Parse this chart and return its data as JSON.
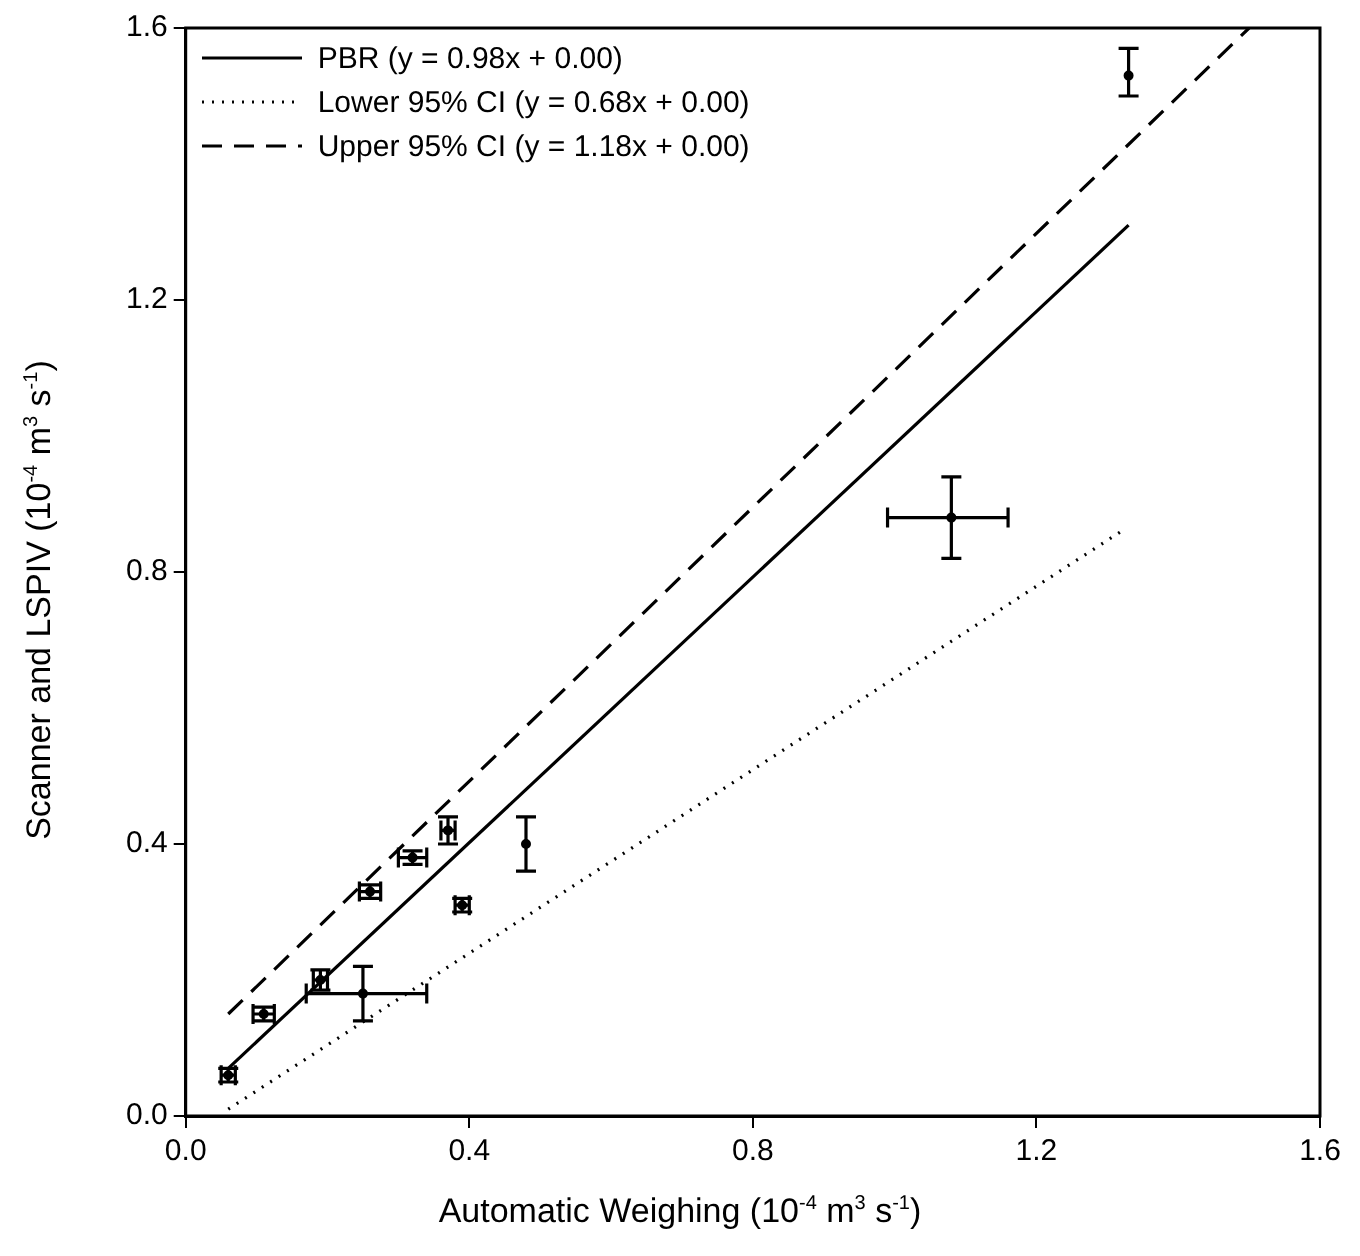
{
  "chart_data": {
    "type": "scatter",
    "xlabel": "Automatic Weighing (10$^{-4}$ m$^{3}$ s$^{-1}$)",
    "ylabel": "Scanner and LSPIV (10$^{-4}$ m$^{3}$ s$^{-1}$)",
    "xlim": [
      0,
      1.6
    ],
    "ylim": [
      0,
      1.6
    ],
    "xticks": [
      {
        "value": 0,
        "label": "0.0"
      },
      0.4,
      0.8,
      1.2,
      1.6
    ],
    "yticks": [
      {
        "value": 0,
        "label": "0.0"
      },
      0.4,
      0.8,
      1.2,
      1.6
    ],
    "grid": false,
    "legend": "top left",
    "series": [
      {
        "color": "#000000",
        "x": [
          0.06,
          0.11,
          0.19,
          0.25,
          0.26,
          0.32,
          0.37,
          0.39,
          0.48,
          1.08,
          1.33
        ],
        "values": [
          0.06,
          0.15,
          0.2,
          0.18,
          0.33,
          0.38,
          0.42,
          0.31,
          0.4,
          0.88,
          1.53
        ],
        "errors": [
          0.01,
          0.01,
          0.015,
          [
            0.14,
            0.22
          ],
          0.01,
          0.01,
          0.02,
          0.01,
          [
            0.36,
            0.44
          ],
          [
            0.82,
            0.94
          ],
          [
            1.5,
            1.57
          ]
        ],
        "xerrors": [
          0.01,
          0.015,
          0.01,
          [
            0.17,
            0.34
          ],
          0.015,
          [
            0.3,
            0.34
          ],
          0.01,
          0.01,
          null,
          [
            0.99,
            1.16
          ],
          null
        ]
      },
      {
        "type": "line",
        "name": "PBR (y = 0.98x + 0.00)",
        "color": "#000000",
        "line_style": "solid",
        "x": [
          0.06,
          1.33
        ],
        "values": [
          0.07,
          1.31
        ]
      },
      {
        "type": "line",
        "name": "Lower 95% CI (y = 0.68x + 0.00)",
        "color": "#000000",
        "line_style": "dotted",
        "x": [
          0.06,
          1.32
        ],
        "values": [
          0.01,
          0.86
        ]
      },
      {
        "type": "line",
        "name": "Upper 95% CI (y = 1.18x + 0.00)",
        "color": "#000000",
        "line_style": "dashed",
        "x": [
          0.06,
          1.5
        ],
        "values": [
          0.15,
          1.6
        ]
      }
    ]
  }
}
